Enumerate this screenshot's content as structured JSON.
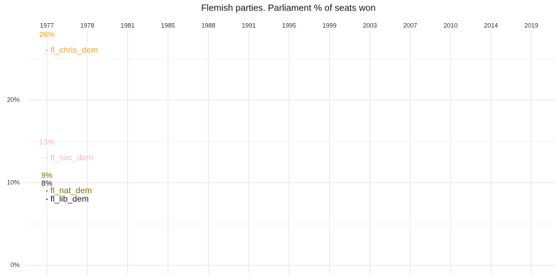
{
  "chart_data": {
    "type": "line",
    "title": "Flemish parties. Parliament % of seats won",
    "categories": [
      "1977",
      "1978",
      "1981",
      "1985",
      "1988",
      "1991",
      "1995",
      "1999",
      "2003",
      "2007",
      "2010",
      "2014",
      "2019"
    ],
    "series": [
      {
        "name": "fl_chris_dem",
        "color": "#f0a030",
        "values": [
          26,
          null,
          null,
          null,
          null,
          null,
          null,
          null,
          null,
          null,
          null,
          null,
          null
        ],
        "value_labels": [
          "26%",
          null,
          null,
          null,
          null,
          null,
          null,
          null,
          null,
          null,
          null,
          null,
          null
        ]
      },
      {
        "name": "fl_soc_dem",
        "color": "#f5b8c2",
        "values": [
          13,
          null,
          null,
          null,
          null,
          null,
          null,
          null,
          null,
          null,
          null,
          null,
          null
        ],
        "value_labels": [
          "13%",
          null,
          null,
          null,
          null,
          null,
          null,
          null,
          null,
          null,
          null,
          null,
          null
        ]
      },
      {
        "name": "fl_nat_dem",
        "color": "#8a6a00",
        "values": [
          9,
          null,
          null,
          null,
          null,
          null,
          null,
          null,
          null,
          null,
          null,
          null,
          null
        ],
        "value_labels": [
          "9%",
          null,
          null,
          null,
          null,
          null,
          null,
          null,
          null,
          null,
          null,
          null,
          null
        ]
      },
      {
        "name": "fl_lib_dem",
        "color": "#1a1a1a",
        "values": [
          8,
          null,
          null,
          null,
          null,
          null,
          null,
          null,
          null,
          null,
          null,
          null,
          null
        ],
        "value_labels": [
          "8%",
          null,
          null,
          null,
          null,
          null,
          null,
          null,
          null,
          null,
          null,
          null,
          null
        ]
      }
    ],
    "ylim": [
      -1.1,
      28.4
    ],
    "yticks": [
      {
        "value": 0,
        "label": "0%"
      },
      {
        "value": 10,
        "label": "10%"
      },
      {
        "value": 20,
        "label": "20%"
      }
    ],
    "yticks_minor": [
      5,
      15,
      25
    ],
    "grid": true
  }
}
